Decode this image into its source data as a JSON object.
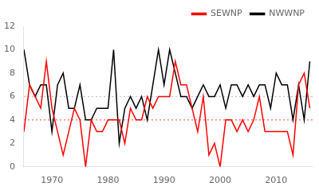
{
  "chart_data": {
    "type": "line",
    "x": [
      1965,
      1966,
      1967,
      1968,
      1969,
      1970,
      1971,
      1972,
      1973,
      1974,
      1975,
      1976,
      1977,
      1978,
      1979,
      1980,
      1981,
      1982,
      1983,
      1984,
      1985,
      1986,
      1987,
      1988,
      1989,
      1990,
      1991,
      1992,
      1993,
      1994,
      1995,
      1996,
      1997,
      1998,
      1999,
      2000,
      2001,
      2002,
      2003,
      2004,
      2005,
      2006,
      2007,
      2008,
      2009,
      2010,
      2011,
      2012,
      2013,
      2014,
      2015,
      2016
    ],
    "series": [
      {
        "name": "SEWNP",
        "color": "#FF0000",
        "values": [
          3,
          7,
          6,
          5,
          9,
          5,
          3,
          1,
          3,
          5,
          4,
          0,
          4,
          3,
          3,
          4,
          4,
          4,
          2,
          5,
          4,
          4,
          6,
          5,
          6,
          6,
          6,
          9,
          7,
          7,
          5,
          3,
          6,
          1,
          2,
          0,
          4,
          4,
          3,
          4,
          3,
          4,
          6,
          3,
          3,
          3,
          3,
          3,
          1,
          7,
          8,
          5
        ]
      },
      {
        "name": "NWWNP",
        "color": "#000000",
        "values": [
          10,
          7,
          6,
          7,
          7,
          3,
          7,
          8,
          5,
          5,
          7,
          4,
          4,
          5,
          5,
          5,
          10,
          2,
          5,
          6,
          5,
          6,
          4,
          7,
          10,
          7,
          10,
          8,
          6,
          6,
          5,
          6,
          7,
          6,
          6,
          7,
          5,
          7,
          7,
          6,
          7,
          6,
          7,
          7,
          5,
          8,
          7,
          7,
          4,
          7,
          4,
          9
        ]
      }
    ],
    "reference_lines": [
      {
        "y": 4.0,
        "color": "#FF0000",
        "line_style": "dotted"
      },
      {
        "y": 6.0,
        "color": "#9999FF",
        "line_style": "dotted"
      }
    ],
    "xlim": [
      1965,
      2016.5
    ],
    "xticks": [
      1970,
      1980,
      1990,
      2000,
      2010
    ],
    "ylim": [
      0,
      12
    ],
    "yticks": [
      0,
      2,
      4,
      6,
      8,
      10,
      12
    ],
    "grid": false,
    "legend": "upper right"
  }
}
